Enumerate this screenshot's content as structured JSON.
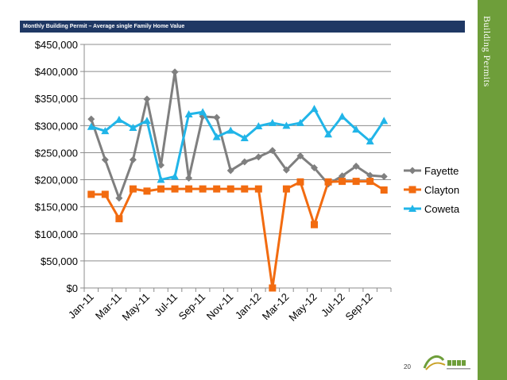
{
  "slide": {
    "banner_text": "Monthly Building Permit – Average single Family Home Value",
    "side_title": "Building Permits",
    "page_number": "20"
  },
  "colors": {
    "banner": "#1f3864",
    "side_bar": "#6e9e3a",
    "fayette": "#7f7f7f",
    "clayton": "#f26b10",
    "coweta": "#21b5e8"
  },
  "logo_icon": "cdda-logo-icon",
  "chart_data": {
    "type": "line",
    "title": "",
    "xlabel": "",
    "ylabel": "",
    "ylim": [
      0,
      450000
    ],
    "grid": true,
    "legend_position": "right",
    "categories": [
      "Jan-11",
      "Feb-11",
      "Mar-11",
      "Apr-11",
      "May-11",
      "Jun-11",
      "Jul-11",
      "Aug-11",
      "Sep-11",
      "Oct-11",
      "Nov-11",
      "Dec-11",
      "Jan-12",
      "Feb-12",
      "Mar-12",
      "Apr-12",
      "May-12",
      "Jun-12",
      "Jul-12",
      "Aug-12",
      "Sep-12",
      "Oct-12"
    ],
    "x_tick_labels": [
      "Jan-11",
      "Mar-11",
      "May-11",
      "Jul-11",
      "Sep-11",
      "Nov-11",
      "Jan-12",
      "Mar-12",
      "May-12",
      "Jul-12",
      "Sep-12"
    ],
    "y_tick_labels": [
      "$0",
      "$50,000",
      "$100,000",
      "$150,000",
      "$200,000",
      "$250,000",
      "$300,000",
      "$350,000",
      "$400,000",
      "$450,000"
    ],
    "series": [
      {
        "name": "Fayette",
        "marker": "diamond",
        "values": [
          312000,
          237000,
          166000,
          237000,
          349000,
          227000,
          399000,
          203000,
          317000,
          315000,
          217000,
          233000,
          242000,
          254000,
          218000,
          244000,
          222000,
          192000,
          207000,
          225000,
          208000,
          206000
        ]
      },
      {
        "name": "Clayton",
        "marker": "square",
        "values": [
          173000,
          173000,
          128000,
          183000,
          179000,
          183000,
          183000,
          183000,
          183000,
          183000,
          183000,
          183000,
          183000,
          0,
          183000,
          196000,
          117000,
          196000,
          197000,
          197000,
          197000,
          181000
        ]
      },
      {
        "name": "Coweta",
        "marker": "triangle",
        "values": [
          298000,
          290000,
          311000,
          296000,
          309000,
          200000,
          206000,
          321000,
          325000,
          279000,
          291000,
          277000,
          299000,
          305000,
          300000,
          305000,
          331000,
          284000,
          317000,
          293000,
          271000,
          309000
        ]
      }
    ]
  }
}
